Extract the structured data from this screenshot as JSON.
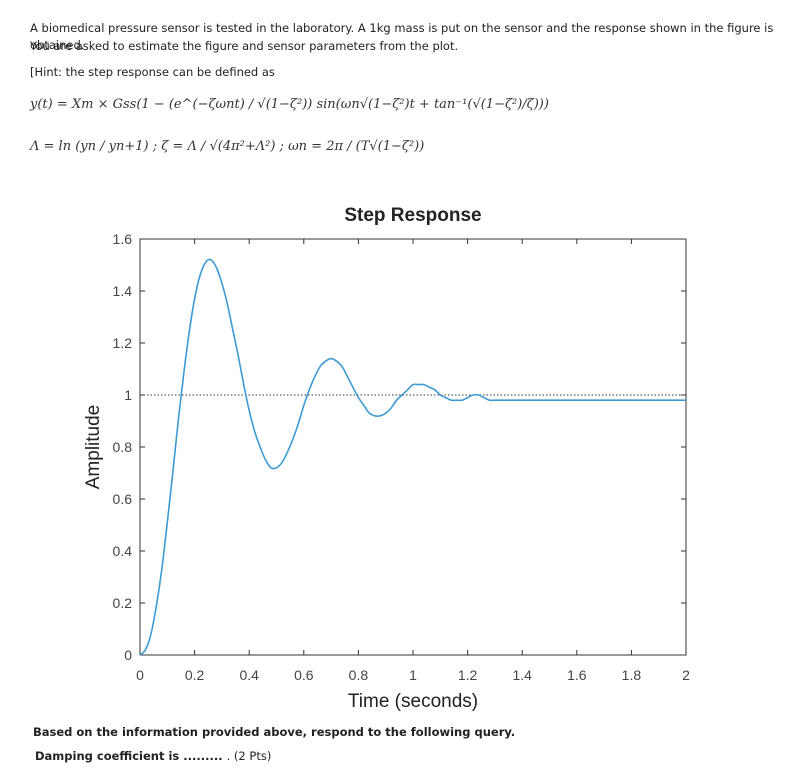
{
  "question": {
    "line1": "A biomedical pressure sensor is tested in the laboratory. A 1kg mass is put on the sensor and the response shown in the figure is obtained.",
    "line2": "You are asked to estimate the figure and sensor parameters from the plot.",
    "hint": "[Hint: the step response can be defined as",
    "formula1": "y(t) = Xm × Gss(1 − (e^(−ζωnt) / √(1−ζ²)) sin(ωn√(1−ζ²)t + tan⁻¹(√(1−ζ²)/ζ)))",
    "formula2": "Λ = ln (yn / yn+1) ; ζ = Λ / √(4π²+Λ²) ; ωn = 2π / (T√(1−ζ²))"
  },
  "chart_data": {
    "type": "line",
    "title": "Step Response",
    "xlabel": "Time (seconds)",
    "ylabel": "Amplitude",
    "xlim": [
      0,
      2
    ],
    "ylim": [
      0,
      1.6
    ],
    "xticks": [
      "0",
      "0.2",
      "0.4",
      "0.6",
      "0.8",
      "1",
      "1.2",
      "1.4",
      "1.6",
      "1.8",
      "2"
    ],
    "yticks": [
      "0",
      "0.2",
      "0.4",
      "0.6",
      "0.8",
      "1",
      "1.2",
      "1.4",
      "1.6"
    ],
    "reference_line": 1,
    "line_color": "#3d9bd3",
    "series": [
      {
        "x": [
          0,
          0.02,
          0.04,
          0.06,
          0.08,
          0.1,
          0.12,
          0.14,
          0.16,
          0.18,
          0.2,
          0.22,
          0.24,
          0.26,
          0.28,
          0.3,
          0.32,
          0.34,
          0.36,
          0.38,
          0.4,
          0.42,
          0.44,
          0.46,
          0.48,
          0.5,
          0.52,
          0.54,
          0.56,
          0.58,
          0.6,
          0.62,
          0.64,
          0.66,
          0.68,
          0.7,
          0.72,
          0.74,
          0.76,
          0.78,
          0.8,
          0.82,
          0.84,
          0.86,
          0.88,
          0.9,
          0.92,
          0.94,
          0.96,
          0.98,
          1.0,
          1.02,
          1.04,
          1.06,
          1.08,
          1.1,
          1.12,
          1.14,
          1.16,
          1.18,
          1.2,
          1.22,
          1.24,
          1.26,
          1.28,
          1.3,
          1.32,
          1.34,
          1.36,
          1.38,
          1.4,
          1.42,
          1.44,
          1.46,
          1.48,
          1.5,
          1.52,
          1.54,
          1.56,
          1.58,
          1.6,
          1.62,
          1.64,
          1.66,
          1.68,
          1.7,
          1.72,
          1.74,
          1.76,
          1.78,
          1.8,
          1.82,
          1.84,
          1.86,
          1.88,
          1.9,
          1.92,
          1.94,
          1.96,
          1.98,
          2.0
        ],
        "values": [
          0,
          0.02,
          0.08,
          0.19,
          0.33,
          0.51,
          0.7,
          0.9,
          1.08,
          1.24,
          1.37,
          1.46,
          1.51,
          1.52,
          1.49,
          1.43,
          1.35,
          1.25,
          1.15,
          1.04,
          0.94,
          0.86,
          0.8,
          0.75,
          0.72,
          0.72,
          0.74,
          0.78,
          0.83,
          0.89,
          0.96,
          1.02,
          1.07,
          1.11,
          1.13,
          1.14,
          1.13,
          1.11,
          1.07,
          1.03,
          0.99,
          0.96,
          0.93,
          0.92,
          0.92,
          0.93,
          0.95,
          0.98,
          1.0,
          1.02,
          1.04,
          1.04,
          1.04,
          1.03,
          1.02,
          1.0,
          0.99,
          0.98,
          0.98,
          0.98,
          0.99,
          1.0,
          1.0,
          0.99,
          0.98,
          0.98,
          0.98,
          0.98,
          0.98,
          0.98,
          0.98,
          0.98,
          0.98,
          0.98,
          0.98,
          0.98,
          0.98,
          0.98,
          0.98,
          0.98,
          0.98,
          0.98,
          0.98,
          0.98,
          0.98,
          0.98,
          0.98,
          0.98,
          0.98,
          0.98,
          0.98,
          0.98,
          0.98,
          0.98,
          0.98,
          0.98,
          0.98,
          0.98,
          0.98,
          0.98,
          0.98
        ]
      }
    ]
  },
  "footer": {
    "prompt": "Based on the information provided above, respond to the following query.",
    "query": "Damping coefficient is .........",
    "points": ". (2 Pts)"
  }
}
